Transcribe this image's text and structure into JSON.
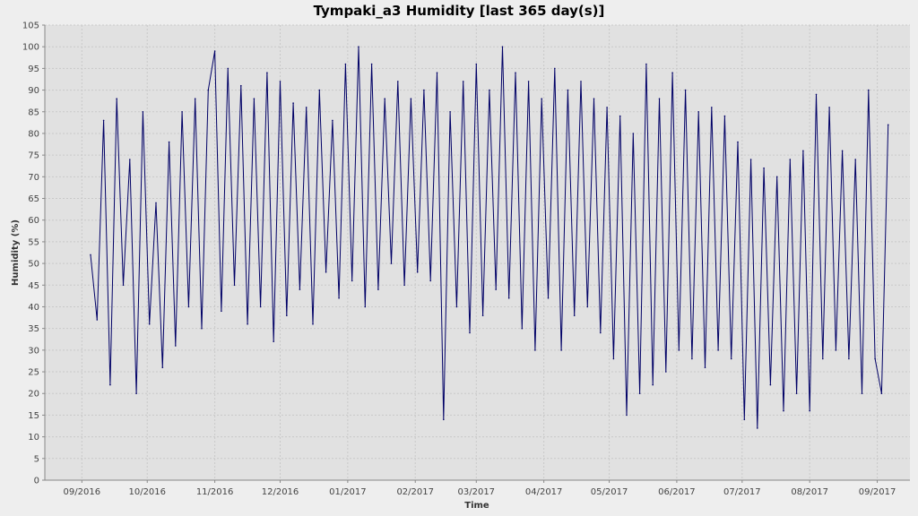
{
  "chart_data": {
    "type": "line",
    "title": "Tympaki_a3 Humidity [last 365 day(s)]",
    "xlabel": "Time",
    "ylabel": "Humidity (%)",
    "ylim": [
      0,
      105
    ],
    "yticks": [
      0,
      5,
      10,
      15,
      20,
      25,
      30,
      35,
      40,
      45,
      50,
      55,
      60,
      65,
      70,
      75,
      80,
      85,
      90,
      95,
      100,
      105
    ],
    "xtick_labels": [
      "09/2016",
      "10/2016",
      "11/2016",
      "12/2016",
      "01/2017",
      "02/2017",
      "03/2017",
      "04/2017",
      "05/2017",
      "06/2017",
      "07/2017",
      "08/2017",
      "09/2017"
    ],
    "grid": true,
    "legend": "none",
    "series": [
      {
        "color": "#000066",
        "x": [
          "2016-09-05",
          "2016-09-08",
          "2016-09-11",
          "2016-09-14",
          "2016-09-17",
          "2016-09-20",
          "2016-09-23",
          "2016-09-26",
          "2016-09-29",
          "2016-10-02",
          "2016-10-05",
          "2016-10-08",
          "2016-10-11",
          "2016-10-14",
          "2016-10-17",
          "2016-10-20",
          "2016-10-23",
          "2016-10-26",
          "2016-10-29",
          "2016-11-01",
          "2016-11-04",
          "2016-11-07",
          "2016-11-10",
          "2016-11-13",
          "2016-11-16",
          "2016-11-19",
          "2016-11-22",
          "2016-11-25",
          "2016-11-28",
          "2016-12-01",
          "2016-12-04",
          "2016-12-07",
          "2016-12-10",
          "2016-12-13",
          "2016-12-16",
          "2016-12-19",
          "2016-12-22",
          "2016-12-25",
          "2016-12-28",
          "2016-12-31",
          "2017-01-03",
          "2017-01-06",
          "2017-01-09",
          "2017-01-12",
          "2017-01-15",
          "2017-01-18",
          "2017-01-21",
          "2017-01-24",
          "2017-01-27",
          "2017-01-30",
          "2017-02-02",
          "2017-02-05",
          "2017-02-08",
          "2017-02-11",
          "2017-02-14",
          "2017-02-17",
          "2017-02-20",
          "2017-02-23",
          "2017-02-26",
          "2017-03-01",
          "2017-03-04",
          "2017-03-07",
          "2017-03-10",
          "2017-03-13",
          "2017-03-16",
          "2017-03-19",
          "2017-03-22",
          "2017-03-25",
          "2017-03-28",
          "2017-03-31",
          "2017-04-03",
          "2017-04-06",
          "2017-04-09",
          "2017-04-12",
          "2017-04-15",
          "2017-04-18",
          "2017-04-21",
          "2017-04-24",
          "2017-04-27",
          "2017-04-30",
          "2017-05-03",
          "2017-05-06",
          "2017-05-09",
          "2017-05-12",
          "2017-05-15",
          "2017-05-18",
          "2017-05-21",
          "2017-05-24",
          "2017-05-27",
          "2017-05-30",
          "2017-06-02",
          "2017-06-05",
          "2017-06-08",
          "2017-06-11",
          "2017-06-14",
          "2017-06-17",
          "2017-06-20",
          "2017-06-23",
          "2017-06-26",
          "2017-06-29",
          "2017-07-02",
          "2017-07-05",
          "2017-07-08",
          "2017-07-11",
          "2017-07-14",
          "2017-07-17",
          "2017-07-20",
          "2017-07-23",
          "2017-07-26",
          "2017-07-29",
          "2017-08-01",
          "2017-08-04",
          "2017-08-07",
          "2017-08-10",
          "2017-08-13",
          "2017-08-16",
          "2017-08-19",
          "2017-08-22",
          "2017-08-25",
          "2017-08-28",
          "2017-08-31",
          "2017-09-03",
          "2017-09-06"
        ],
        "y": [
          52,
          37,
          83,
          22,
          88,
          45,
          74,
          20,
          85,
          36,
          64,
          26,
          78,
          31,
          85,
          40,
          88,
          35,
          90,
          99,
          39,
          95,
          45,
          91,
          36,
          88,
          40,
          94,
          32,
          92,
          38,
          87,
          44,
          86,
          36,
          90,
          48,
          83,
          42,
          96,
          46,
          100,
          40,
          96,
          44,
          88,
          50,
          92,
          45,
          88,
          48,
          90,
          46,
          94,
          14,
          85,
          40,
          92,
          34,
          96,
          38,
          90,
          44,
          100,
          42,
          94,
          35,
          92,
          30,
          88,
          42,
          95,
          30,
          90,
          38,
          92,
          40,
          88,
          34,
          86,
          28,
          84,
          15,
          80,
          20,
          96,
          22,
          88,
          25,
          94,
          30,
          90,
          28,
          85,
          26,
          86,
          30,
          84,
          28,
          78,
          14,
          74,
          12,
          72,
          22,
          70,
          16,
          74,
          20,
          76,
          16,
          89,
          28,
          86,
          30,
          76,
          28,
          74,
          20,
          90,
          28,
          20,
          82
        ]
      }
    ]
  }
}
